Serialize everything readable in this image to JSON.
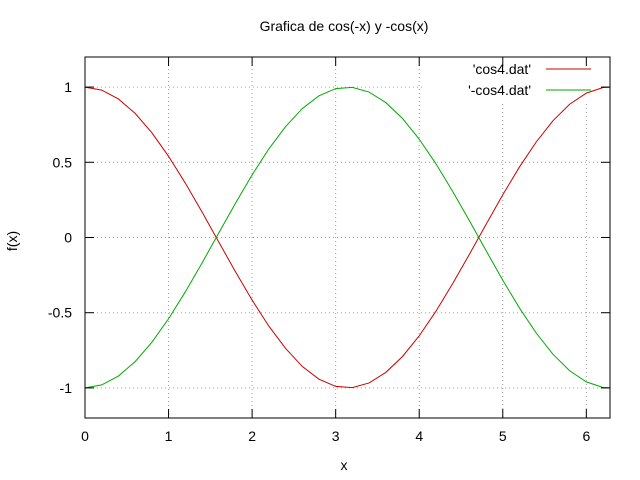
{
  "chart_data": {
    "type": "line",
    "title": "Grafica de cos(-x) y -cos(x)",
    "xlabel": "x",
    "ylabel": "f(x)",
    "xlim": [
      0,
      6.2832
    ],
    "ylim": [
      -1.2,
      1.2
    ],
    "grid": true,
    "legend_position": "top-right",
    "x_ticks": [
      {
        "value": 0,
        "label": "0"
      },
      {
        "value": 1,
        "label": "1"
      },
      {
        "value": 2,
        "label": "2"
      },
      {
        "value": 3,
        "label": "3"
      },
      {
        "value": 4,
        "label": "4"
      },
      {
        "value": 5,
        "label": "5"
      },
      {
        "value": 6,
        "label": "6"
      }
    ],
    "y_ticks": [
      {
        "value": 1,
        "label": "1"
      },
      {
        "value": 0.5,
        "label": "0.5"
      },
      {
        "value": 0,
        "label": "0"
      },
      {
        "value": -0.5,
        "label": "-0.5"
      },
      {
        "value": -1,
        "label": "-1"
      }
    ],
    "x": [
      0,
      0.2,
      0.4,
      0.6,
      0.8,
      1.0,
      1.2,
      1.4,
      1.6,
      1.8,
      2.0,
      2.2,
      2.4,
      2.6,
      2.8,
      3.0,
      3.2,
      3.4,
      3.6,
      3.8,
      4.0,
      4.2,
      4.4,
      4.6,
      4.8,
      5.0,
      5.2,
      5.4,
      5.6,
      5.8,
      6.0,
      6.2,
      6.2832
    ],
    "series": [
      {
        "name": "'cos4.dat'",
        "color": "#cc0000",
        "values": [
          1.0,
          0.98,
          0.921,
          0.825,
          0.697,
          0.54,
          0.362,
          0.17,
          -0.029,
          -0.227,
          -0.416,
          -0.589,
          -0.737,
          -0.857,
          -0.942,
          -0.99,
          -0.998,
          -0.967,
          -0.897,
          -0.791,
          -0.654,
          -0.49,
          -0.307,
          -0.112,
          0.087,
          0.284,
          0.469,
          0.635,
          0.776,
          0.886,
          0.96,
          0.997,
          1.0
        ]
      },
      {
        "name": "'-cos4.dat'",
        "color": "#00aa00",
        "values": [
          -1.0,
          -0.98,
          -0.921,
          -0.825,
          -0.697,
          -0.54,
          -0.362,
          -0.17,
          0.029,
          0.227,
          0.416,
          0.589,
          0.737,
          0.857,
          0.942,
          0.99,
          0.998,
          0.967,
          0.897,
          0.791,
          0.654,
          0.49,
          0.307,
          0.112,
          -0.087,
          -0.284,
          -0.469,
          -0.635,
          -0.776,
          -0.886,
          -0.96,
          -0.997,
          -1.0
        ]
      }
    ]
  }
}
